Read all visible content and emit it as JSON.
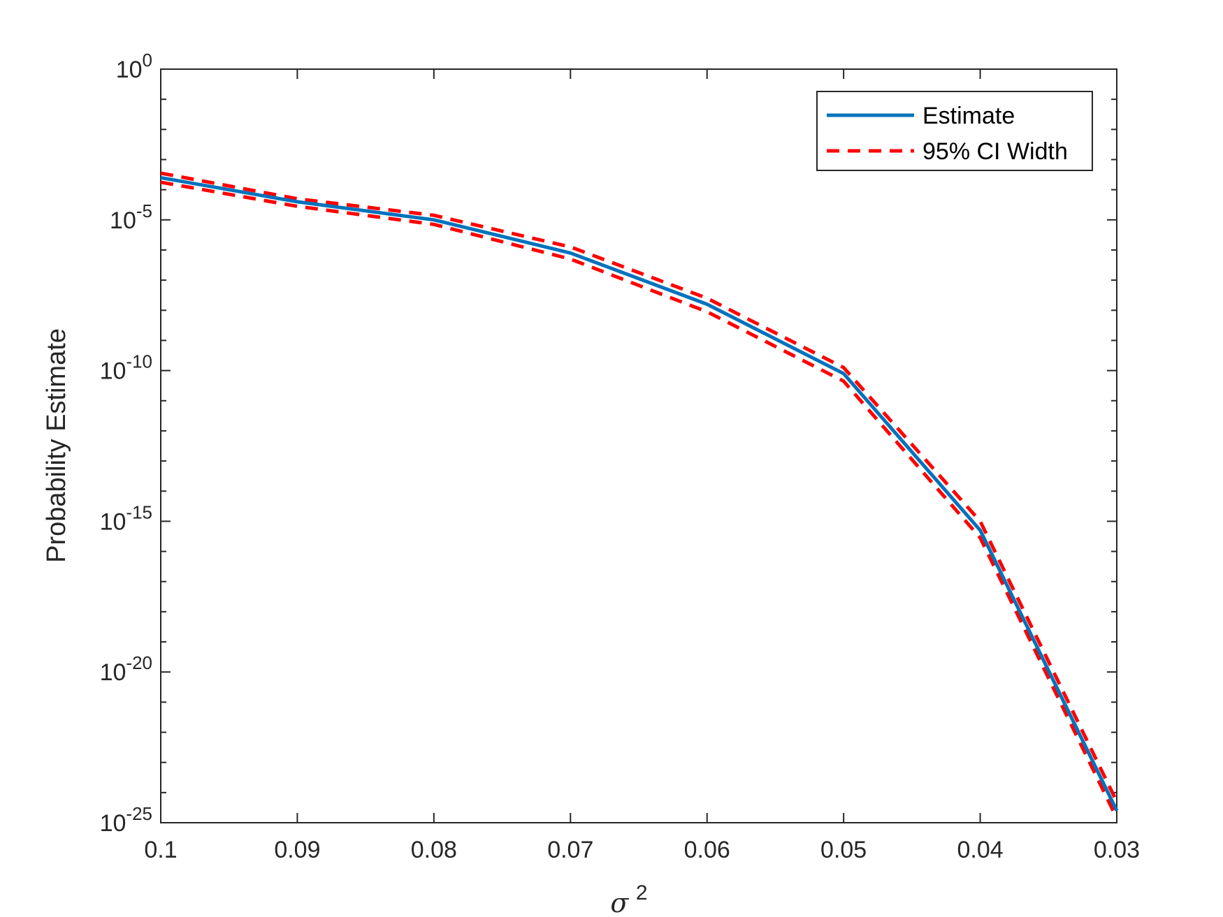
{
  "chart_data": {
    "type": "line",
    "xlabel": "σ",
    "xlabel_superscript": "2",
    "ylabel": "Probability Estimate",
    "x_reversed": true,
    "y_scale": "log",
    "xlim": [
      0.1,
      0.03
    ],
    "ylim_exponent": [
      -25,
      0
    ],
    "x_ticks": [
      "0.1",
      "0.09",
      "0.08",
      "0.07",
      "0.06",
      "0.05",
      "0.04",
      "0.03"
    ],
    "y_ticks": [
      {
        "base": "10",
        "exp": "0",
        "value": 0
      },
      {
        "base": "10",
        "exp": "-5",
        "value": -5
      },
      {
        "base": "10",
        "exp": "-10",
        "value": -10
      },
      {
        "base": "10",
        "exp": "-15",
        "value": -15
      },
      {
        "base": "10",
        "exp": "-20",
        "value": -20
      },
      {
        "base": "10",
        "exp": "-25",
        "value": -25
      }
    ],
    "legend_position": "top-right",
    "series": [
      {
        "name": "Estimate",
        "color": "#0072BD",
        "style": "solid",
        "x": [
          0.1,
          0.09,
          0.08,
          0.07,
          0.06,
          0.05,
          0.04,
          0.03
        ],
        "log10_y": [
          -3.6,
          -4.4,
          -5.0,
          -6.1,
          -7.8,
          -10.1,
          -15.3,
          -24.6
        ]
      },
      {
        "name": "95% CI Width",
        "color": "#FF0000",
        "style": "dashed",
        "x": [
          0.1,
          0.09,
          0.08,
          0.07,
          0.06,
          0.05,
          0.04,
          0.03
        ],
        "log10_y_upper": [
          -3.45,
          -4.3,
          -4.85,
          -5.9,
          -7.6,
          -9.9,
          -15.0,
          -24.3
        ],
        "log10_y_lower": [
          -3.75,
          -4.55,
          -5.15,
          -6.3,
          -8.05,
          -10.35,
          -15.55,
          -24.85
        ]
      }
    ],
    "grid": false
  }
}
